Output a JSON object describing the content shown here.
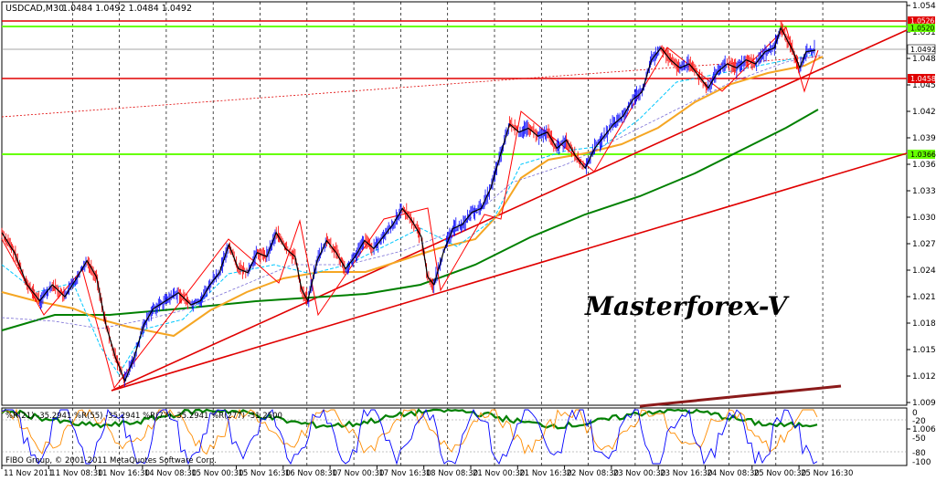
{
  "header": {
    "symbol_timeframe": "USDCAD,M30",
    "ohlc": "1.0484 1.0492 1.0484 1.0492"
  },
  "watermark": "Masterforex-V",
  "copyright": "FIBO Group, © 2001-2011 MetaQuotes Software Corp.",
  "indicator": {
    "label": "%R(21) -35.2941 %R(55) -35.2941 %R(77) -35.2941 %R(277) -31.2500",
    "levels": [
      "0",
      "-20",
      "-50",
      "-80",
      "-100"
    ]
  },
  "price_badges": {
    "current": "1.0492",
    "top_red": "1.0526",
    "top_green": "1.0520",
    "mid_red": "1.0458",
    "mid_green": "1.0366"
  },
  "colors": {
    "price_up": "#0000ff",
    "price_down": "#ff0000",
    "ma_fast": "#00c8ff",
    "ma_orange": "#f5a623",
    "ma_green": "#008000",
    "support_red": "#e00000",
    "level_green": "#66ff00",
    "indicator_blue": "#0000ff",
    "indicator_orange": "#ff8c00",
    "indicator_green": "#008000"
  },
  "chart_data": {
    "type": "line",
    "title": "USDCAD,M30",
    "y_axis_ticks": [
      "1.0545",
      "1.0515",
      "1.0485",
      "1.0455",
      "1.0425",
      "1.0395",
      "1.0365",
      "1.0335",
      "1.0305",
      "1.0275",
      "1.0245",
      "1.0215",
      "1.0185",
      "1.0155",
      "1.0125",
      "1.0095",
      "1.0065"
    ],
    "x_axis_ticks": [
      "11 Nov 2011",
      "11 Nov 08:30",
      "11 Nov 16:30",
      "14 Nov 08:30",
      "15 Nov 00:30",
      "15 Nov 16:30",
      "16 Nov 08:30",
      "17 Nov 00:30",
      "17 Nov 16:30",
      "18 Nov 08:30",
      "21 Nov 00:30",
      "21 Nov 16:30",
      "22 Nov 08:30",
      "23 Nov 00:30",
      "23 Nov 16:30",
      "24 Nov 08:30",
      "25 Nov 00:30",
      "25 Nov 16:30"
    ],
    "ylim": [
      1.005,
      1.055
    ],
    "price_path": [
      [
        0,
        1.0265
      ],
      [
        4,
        1.024
      ],
      [
        8,
        1.02
      ],
      [
        12,
        1.018
      ],
      [
        16,
        1.02
      ],
      [
        20,
        1.0185
      ],
      [
        24,
        1.021
      ],
      [
        27,
        1.023
      ],
      [
        30,
        1.021
      ],
      [
        33,
        1.015
      ],
      [
        36,
        1.011
      ],
      [
        39,
        1.008
      ],
      [
        42,
        1.011
      ],
      [
        45,
        1.015
      ],
      [
        48,
        1.017
      ],
      [
        52,
        1.018
      ],
      [
        56,
        1.019
      ],
      [
        60,
        1.0175
      ],
      [
        63,
        1.018
      ],
      [
        66,
        1.02
      ],
      [
        69,
        1.0215
      ],
      [
        72,
        1.025
      ],
      [
        75,
        1.022
      ],
      [
        78,
        1.0215
      ],
      [
        81,
        1.024
      ],
      [
        84,
        1.0235
      ],
      [
        87,
        1.0265
      ],
      [
        90,
        1.0245
      ],
      [
        93,
        1.0235
      ],
      [
        95,
        1.0195
      ],
      [
        97,
        1.018
      ],
      [
        100,
        1.023
      ],
      [
        103,
        1.0255
      ],
      [
        106,
        1.024
      ],
      [
        109,
        1.022
      ],
      [
        112,
        1.0235
      ],
      [
        115,
        1.0255
      ],
      [
        118,
        1.0245
      ],
      [
        121,
        1.026
      ],
      [
        124,
        1.0275
      ],
      [
        127,
        1.0295
      ],
      [
        130,
        1.028
      ],
      [
        133,
        1.026
      ],
      [
        135,
        1.021
      ],
      [
        137,
        1.02
      ],
      [
        140,
        1.024
      ],
      [
        143,
        1.027
      ],
      [
        146,
        1.0275
      ],
      [
        149,
        1.029
      ],
      [
        152,
        1.0295
      ],
      [
        155,
        1.032
      ],
      [
        158,
        1.036
      ],
      [
        161,
        1.04
      ],
      [
        164,
        1.039
      ],
      [
        167,
        1.0395
      ],
      [
        170,
        1.0385
      ],
      [
        173,
        1.039
      ],
      [
        176,
        1.037
      ],
      [
        179,
        1.038
      ],
      [
        182,
        1.036
      ],
      [
        185,
        1.0345
      ],
      [
        188,
        1.037
      ],
      [
        191,
        1.0385
      ],
      [
        194,
        1.04
      ],
      [
        197,
        1.041
      ],
      [
        200,
        1.043
      ],
      [
        203,
        1.044
      ],
      [
        206,
        1.048
      ],
      [
        209,
        1.0495
      ],
      [
        212,
        1.048
      ],
      [
        215,
        1.047
      ],
      [
        218,
        1.0475
      ],
      [
        221,
        1.046
      ],
      [
        224,
        1.0445
      ],
      [
        227,
        1.0465
      ],
      [
        230,
        1.0475
      ],
      [
        233,
        1.047
      ],
      [
        236,
        1.048
      ],
      [
        239,
        1.0475
      ],
      [
        242,
        1.049
      ],
      [
        245,
        1.0495
      ],
      [
        247,
        1.052
      ],
      [
        249,
        1.0505
      ],
      [
        251,
        1.049
      ],
      [
        253,
        1.047
      ],
      [
        255,
        1.049
      ],
      [
        258,
        1.0492
      ]
    ],
    "indicator_ylim": [
      -100,
      0
    ]
  }
}
